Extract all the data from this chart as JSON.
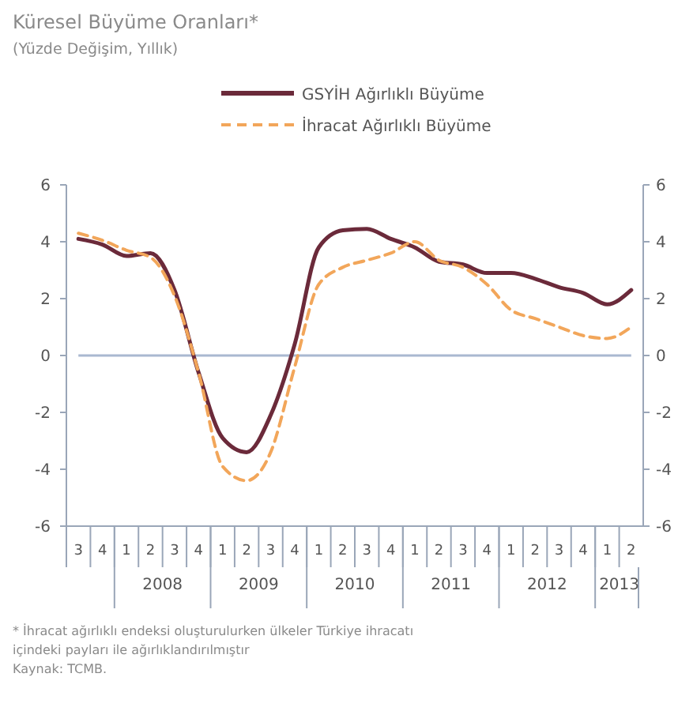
{
  "chart_data": {
    "type": "line",
    "title": "Küresel Büyüme Oranları*",
    "subtitle": "(Yüzde Değişim, Yıllık)",
    "categories": [
      "3",
      "4",
      "1",
      "2",
      "3",
      "4",
      "1",
      "2",
      "3",
      "4",
      "1",
      "2",
      "3",
      "4",
      "1",
      "2",
      "3",
      "4",
      "1",
      "2",
      "3",
      "4",
      "1",
      "2"
    ],
    "series": [
      {
        "name": "GSYİH Ağırlıklı Büyüme",
        "color": "#6b2a3a",
        "line_style": "solid",
        "values": [
          4.1,
          3.9,
          3.5,
          3.6,
          2.3,
          -0.6,
          -2.9,
          -3.4,
          -2.1,
          0.4,
          3.8,
          4.4,
          4.45,
          4.1,
          3.8,
          3.3,
          3.2,
          2.9,
          2.9,
          2.7,
          2.4,
          2.2,
          1.8,
          2.3
        ]
      },
      {
        "name": "İhracat Ağırlıklı Büyüme",
        "color": "#f2a65a",
        "line_style": "dashed",
        "values": [
          4.3,
          4.05,
          3.7,
          3.45,
          2.1,
          -0.6,
          -3.9,
          -4.4,
          -3.4,
          -0.4,
          2.5,
          3.1,
          3.35,
          3.6,
          4.0,
          3.35,
          3.1,
          2.5,
          1.6,
          1.3,
          1.0,
          0.7,
          0.6,
          1.0
        ]
      }
    ],
    "ylim": [
      -6,
      6
    ],
    "yticks": [
      -6,
      -4,
      -2,
      0,
      2,
      4,
      6
    ],
    "y2lim": [
      -6,
      6
    ],
    "y2ticks": [
      -6,
      -4,
      -2,
      0,
      2,
      4,
      6
    ],
    "ref_lines": [
      {
        "axis": "y",
        "value": 0,
        "color": "#a9b8d0"
      }
    ],
    "legend": "top",
    "grid": false,
    "marker": "none",
    "annotations": [
      {
        "text": "2008"
      },
      {
        "text": "2009"
      },
      {
        "text": "2010"
      },
      {
        "text": "2011"
      },
      {
        "text": "2012"
      },
      {
        "text": "2013"
      },
      "* İhracat ağırlıklı endeksi oluşturulurken ülkeler Türkiye ihracatı içindeki payları ile ağırlıklandırılmıştır",
      "Kaynak: TCMB."
    ]
  }
}
